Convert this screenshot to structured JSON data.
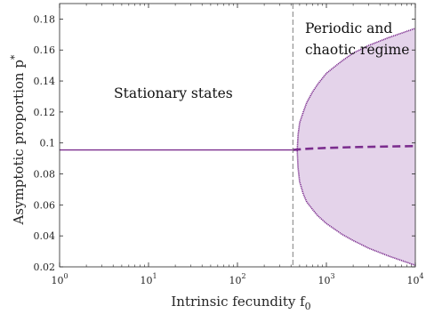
{
  "chart_data": {
    "type": "line",
    "xlabel": "Intrinsic fecundity f",
    "xlabel_sub": "0",
    "ylabel": "Asymptotic proportion p",
    "ylabel_sup": "*",
    "x_scale": "log",
    "xlim": [
      1,
      10000
    ],
    "ylim": [
      0.02,
      0.19
    ],
    "x_tick_labels": [
      {
        "value": 1,
        "base": "10",
        "exp": "0"
      },
      {
        "value": 10,
        "base": "10",
        "exp": "1"
      },
      {
        "value": 100,
        "base": "10",
        "exp": "2"
      },
      {
        "value": 1000,
        "base": "10",
        "exp": "3"
      },
      {
        "value": 10000,
        "base": "10",
        "exp": "4"
      }
    ],
    "y_ticks": [
      0.02,
      0.04,
      0.06,
      0.08,
      0.1,
      0.12,
      0.14,
      0.16,
      0.18
    ],
    "y_tick_labels": [
      "0.02",
      "0.04",
      "0.06",
      "0.08",
      "0.1",
      "0.12",
      "0.14",
      "0.16",
      "0.18"
    ],
    "grid": false,
    "bifurcation_f0": 420,
    "annotations": {
      "stationary": "Stationary states",
      "periodic_line1": "Periodic and",
      "periodic_line2": "chaotic regime"
    },
    "stationary_line": {
      "x": [
        1,
        420
      ],
      "y": [
        0.0955,
        0.0955
      ]
    },
    "mean_line": {
      "x": [
        420,
        600,
        1000,
        2000,
        5000,
        10000
      ],
      "y": [
        0.0955,
        0.0962,
        0.0968,
        0.0973,
        0.0977,
        0.098
      ]
    },
    "upper_envelope": {
      "x": [
        470,
        480,
        500,
        550,
        600,
        700,
        800,
        1000,
        1500,
        2000,
        3000,
        5000,
        10000
      ],
      "y": [
        0.095,
        0.105,
        0.113,
        0.12,
        0.126,
        0.133,
        0.138,
        0.145,
        0.153,
        0.158,
        0.163,
        0.168,
        0.174
      ]
    },
    "lower_envelope": {
      "x": [
        470,
        480,
        500,
        550,
        600,
        700,
        800,
        1000,
        1500,
        2000,
        3000,
        5000,
        10000
      ],
      "y": [
        0.095,
        0.084,
        0.075,
        0.067,
        0.062,
        0.057,
        0.053,
        0.048,
        0.041,
        0.037,
        0.032,
        0.027,
        0.021
      ]
    },
    "colors": {
      "line": "#7b2d8e",
      "fill": "#e4d3ea",
      "vline": "#7f7f7f",
      "axis": "#262626"
    }
  }
}
